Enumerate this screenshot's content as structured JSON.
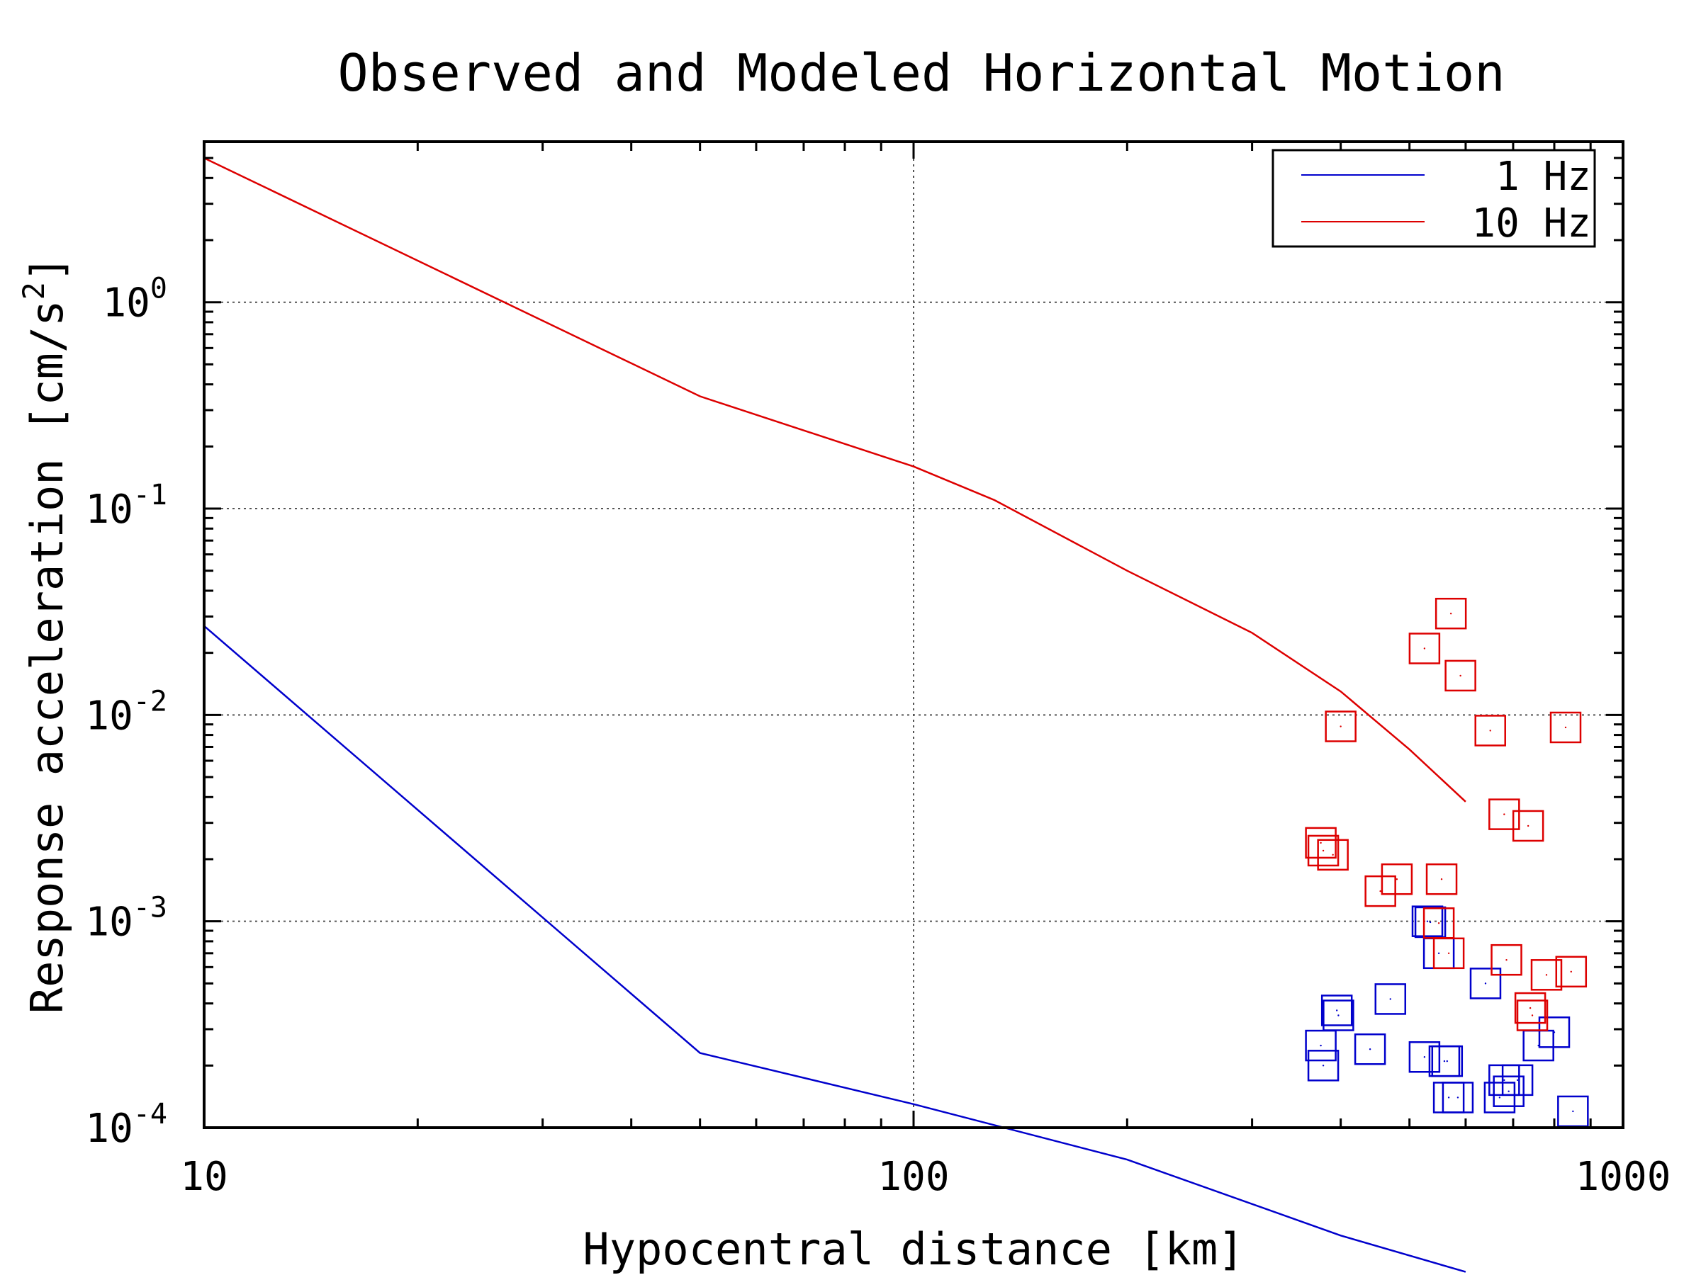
{
  "chart_data": {
    "type": "line",
    "title": "Observed and Modeled Horizontal Motion",
    "xlabel": "Hypocentral distance [km]",
    "ylabel": "Response acceleration [cm/s²]",
    "ylabel_main": "Response acceleration [cm/s",
    "ylabel_sup": "2",
    "ylabel_close": "]",
    "x_scale": "log",
    "y_scale": "log",
    "xlim": [
      10,
      1000
    ],
    "ylim": [
      0.0001,
      6
    ],
    "grid": true,
    "legend_position": "top-right",
    "x_ticks": [
      {
        "value": 10,
        "label": "10"
      },
      {
        "value": 100,
        "label": "100"
      },
      {
        "value": 1000,
        "label": "1000"
      }
    ],
    "y_ticks": [
      {
        "value": 1,
        "base": "10",
        "exp": "0"
      },
      {
        "value": 0.1,
        "base": "10",
        "exp": "-1"
      },
      {
        "value": 0.01,
        "base": "10",
        "exp": "-2"
      },
      {
        "value": 0.001,
        "base": "10",
        "exp": "-3"
      },
      {
        "value": 0.0001,
        "base": "10",
        "exp": "-4"
      }
    ],
    "series": [
      {
        "name": "1 Hz",
        "color": "#0000cc",
        "line": [
          [
            10,
            0.027
          ],
          [
            50,
            0.00023
          ],
          [
            100,
            0.00013
          ],
          [
            200,
            7e-05
          ],
          [
            400,
            3e-05
          ],
          [
            600,
            2e-05
          ]
        ],
        "points": [
          [
            375,
            0.00025
          ],
          [
            378,
            0.0002
          ],
          [
            395,
            0.00037
          ],
          [
            397,
            0.00035
          ],
          [
            440,
            0.00024
          ],
          [
            470,
            0.00042
          ],
          [
            525,
            0.00022
          ],
          [
            530,
            0.001
          ],
          [
            535,
            0.00099
          ],
          [
            550,
            0.0007
          ],
          [
            560,
            0.00021
          ],
          [
            565,
            0.00021
          ],
          [
            568,
            0.00014
          ],
          [
            585,
            0.00014
          ],
          [
            640,
            0.0005
          ],
          [
            670,
            0.00014
          ],
          [
            680,
            0.00017
          ],
          [
            690,
            0.00015
          ],
          [
            710,
            0.00017
          ],
          [
            760,
            0.00025
          ],
          [
            800,
            0.00029
          ],
          [
            850,
            0.00012
          ]
        ]
      },
      {
        "name": "10 Hz",
        "color": "#dd0000",
        "line": [
          [
            10,
            5.0
          ],
          [
            50,
            0.35
          ],
          [
            100,
            0.16
          ],
          [
            130,
            0.11
          ],
          [
            200,
            0.05
          ],
          [
            300,
            0.025
          ],
          [
            400,
            0.013
          ],
          [
            500,
            0.0068
          ],
          [
            600,
            0.0038
          ]
        ],
        "points": [
          [
            375,
            0.0024
          ],
          [
            378,
            0.0022
          ],
          [
            390,
            0.0021
          ],
          [
            400,
            0.0088
          ],
          [
            455,
            0.0014
          ],
          [
            480,
            0.0016
          ],
          [
            525,
            0.021
          ],
          [
            550,
            0.00098
          ],
          [
            555,
            0.0016
          ],
          [
            568,
            0.0007
          ],
          [
            572,
            0.031
          ],
          [
            590,
            0.0155
          ],
          [
            650,
            0.0084
          ],
          [
            680,
            0.0033
          ],
          [
            685,
            0.00065
          ],
          [
            735,
            0.0029
          ],
          [
            740,
            0.00038
          ],
          [
            745,
            0.00035
          ],
          [
            780,
            0.00055
          ],
          [
            830,
            0.0087
          ],
          [
            845,
            0.00057
          ]
        ]
      }
    ]
  }
}
